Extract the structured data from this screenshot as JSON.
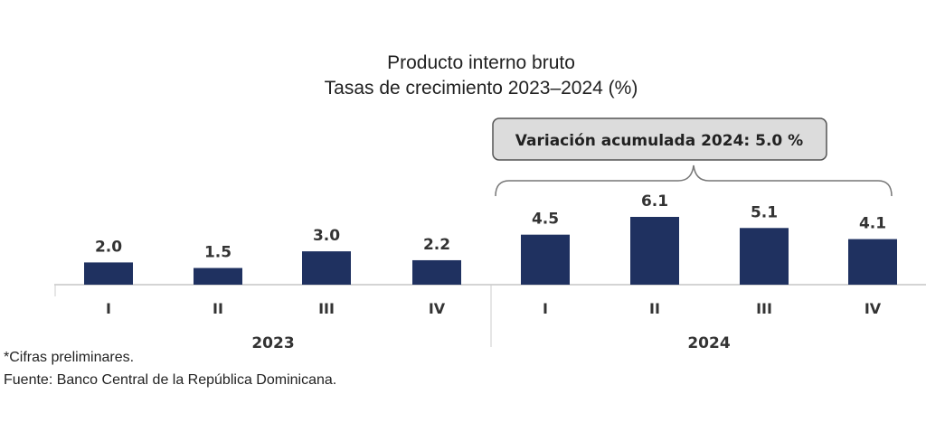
{
  "chart_data": {
    "type": "bar",
    "title": "Producto interno bruto",
    "subtitle": "Tasas de crecimiento 2023–2024 (%)",
    "groups": [
      {
        "label": "2023",
        "categories": [
          "I",
          "II",
          "III",
          "IV"
        ],
        "values": [
          2.0,
          1.5,
          3.0,
          2.2
        ]
      },
      {
        "label": "2024",
        "categories": [
          "I",
          "II",
          "III",
          "IV"
        ],
        "values": [
          4.5,
          6.1,
          5.1,
          4.1
        ]
      }
    ],
    "categories": [
      "I",
      "II",
      "III",
      "IV",
      "I",
      "II",
      "III",
      "IV"
    ],
    "values": [
      2.0,
      1.5,
      3.0,
      2.2,
      4.5,
      6.1,
      5.1,
      4.1
    ],
    "value_labels": [
      "2.0",
      "1.5",
      "3.0",
      "2.2",
      "4.5",
      "6.1",
      "5.1",
      "4.1"
    ],
    "annotation": "Variación acumulada 2024:  5.0 %",
    "ylim": [
      0,
      6.1
    ],
    "grid": false,
    "bar_color": "#1f3160"
  },
  "footnotes": {
    "note": "*Cifras preliminares.",
    "source": "Fuente: Banco Central de la República Dominicana."
  }
}
